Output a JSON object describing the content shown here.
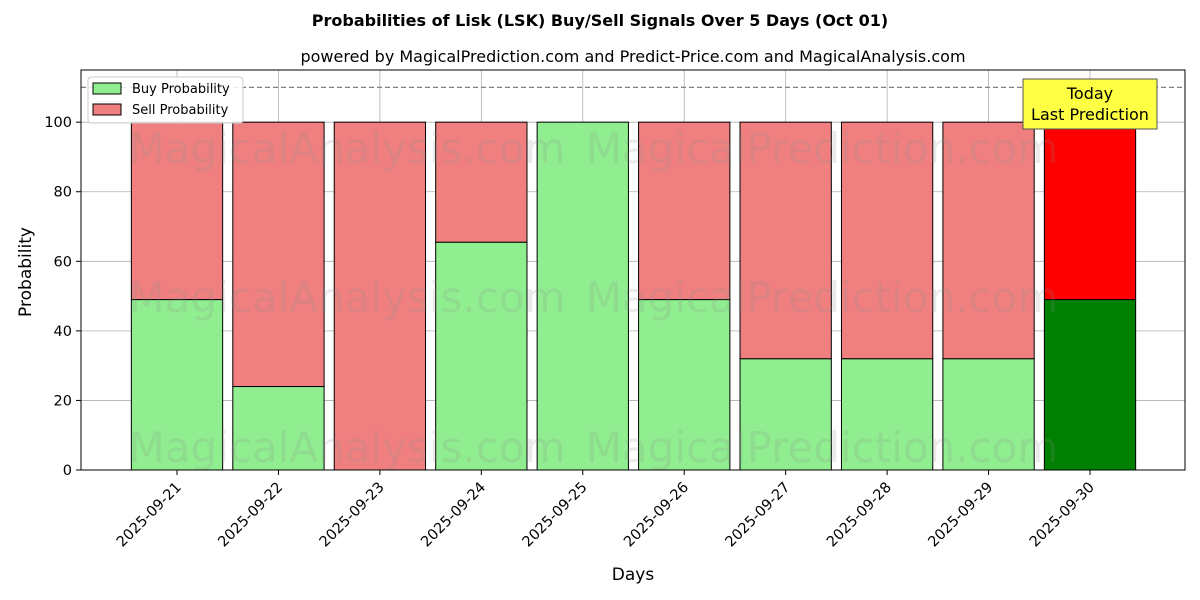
{
  "chart_data": {
    "type": "bar",
    "stacked": true,
    "title": "Probabilities of Lisk (LSK) Buy/Sell Signals Over 5 Days (Oct 01)",
    "subtitle": "powered by MagicalPrediction.com and Predict-Price.com and MagicalAnalysis.com",
    "xlabel": "Days",
    "ylabel": "Probability",
    "ylim": [
      0,
      115
    ],
    "yticks": [
      0,
      20,
      40,
      60,
      80,
      100
    ],
    "grid": true,
    "legend_position": "top-left",
    "reference_line": {
      "y": 110,
      "style": "dashed",
      "color": "#808080"
    },
    "categories": [
      "2025-09-21",
      "2025-09-22",
      "2025-09-23",
      "2025-09-24",
      "2025-09-25",
      "2025-09-26",
      "2025-09-27",
      "2025-09-28",
      "2025-09-29",
      "2025-09-30"
    ],
    "series": [
      {
        "name": "Buy Probability",
        "color": "#90ee90",
        "highlight_color": "#008000",
        "values": [
          49,
          24,
          0,
          65.5,
          100,
          49,
          32,
          32,
          32,
          49
        ]
      },
      {
        "name": "Sell Probability",
        "color": "#f08080",
        "highlight_color": "#ff0000",
        "values": [
          51,
          76,
          100,
          34.5,
          0,
          51,
          68,
          68,
          68,
          51
        ]
      }
    ],
    "highlight_index": 9,
    "annotation": {
      "lines": [
        "Today",
        "Last Prediction"
      ],
      "background": "#ffff44"
    },
    "watermarks": [
      "MagicalAnalysis.com",
      "MagicalPrediction.com"
    ]
  }
}
